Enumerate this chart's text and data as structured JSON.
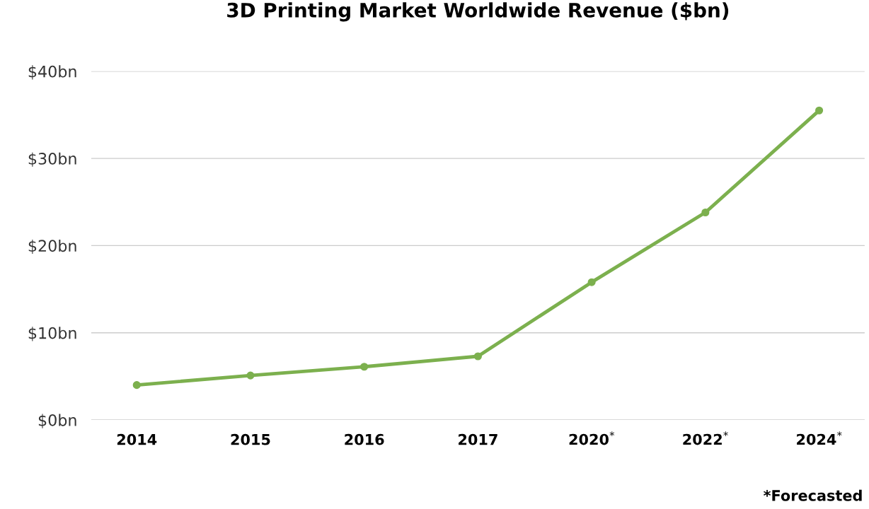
{
  "chart_data": {
    "type": "line",
    "title": "3D Printing Market Worldwide Revenue ($bn)",
    "categories": [
      "2014",
      "2015",
      "2016",
      "2017",
      "2020$^{*}$",
      "2022$^{*}$",
      "2024$^{*}$"
    ],
    "series": [
      {
        "color": "#7cb04e",
        "values": [
          4.0,
          5.1,
          6.1,
          7.3,
          15.8,
          23.8,
          35.5
        ]
      }
    ],
    "ylim": [
      0,
      40
    ],
    "yticks": [
      {
        "value": 0,
        "label": "$0bn"
      },
      {
        "value": 10,
        "label": "$10bn"
      },
      {
        "value": 20,
        "label": "$20bn"
      },
      {
        "value": 30,
        "label": "$30bn"
      },
      {
        "value": 40,
        "label": "$40bn"
      }
    ],
    "grid": "y",
    "marker": "circle",
    "line_style": "solid",
    "annotations": [
      "*Forecasted"
    ]
  }
}
